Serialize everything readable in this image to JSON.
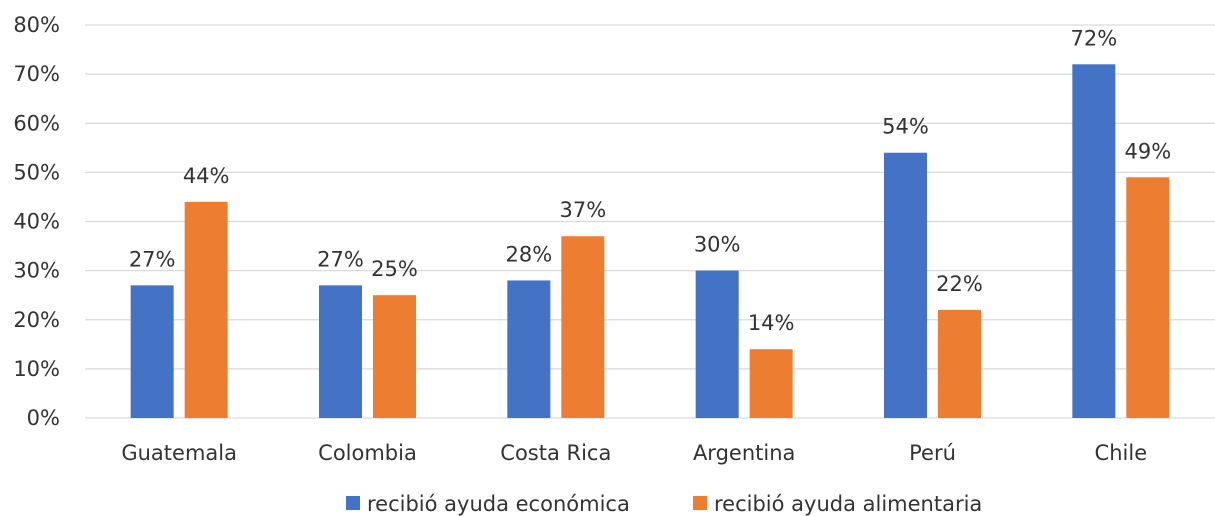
{
  "chart_data": {
    "type": "bar",
    "categories": [
      "Guatemala",
      "Colombia",
      "Costa Rica",
      "Argentina",
      "Perú",
      "Chile"
    ],
    "series": [
      {
        "name": "recibió ayuda económica",
        "color": "#4472c4",
        "values": [
          27,
          27,
          28,
          30,
          54,
          72
        ],
        "labels": [
          "27%",
          "27%",
          "28%",
          "30%",
          "54%",
          "72%"
        ]
      },
      {
        "name": "recibió ayuda alimentaria",
        "color": "#ed7d31",
        "values": [
          44,
          25,
          37,
          14,
          22,
          49
        ],
        "labels": [
          "44%",
          "25%",
          "37%",
          "14%",
          "22%",
          "49%"
        ]
      }
    ],
    "yticks": [
      "0%",
      "10%",
      "20%",
      "30%",
      "40%",
      "50%",
      "60%",
      "70%",
      "80%"
    ],
    "ylim": [
      0,
      80
    ],
    "title": "",
    "xlabel": "",
    "ylabel": "",
    "grid": true,
    "legend_position": "bottom"
  }
}
